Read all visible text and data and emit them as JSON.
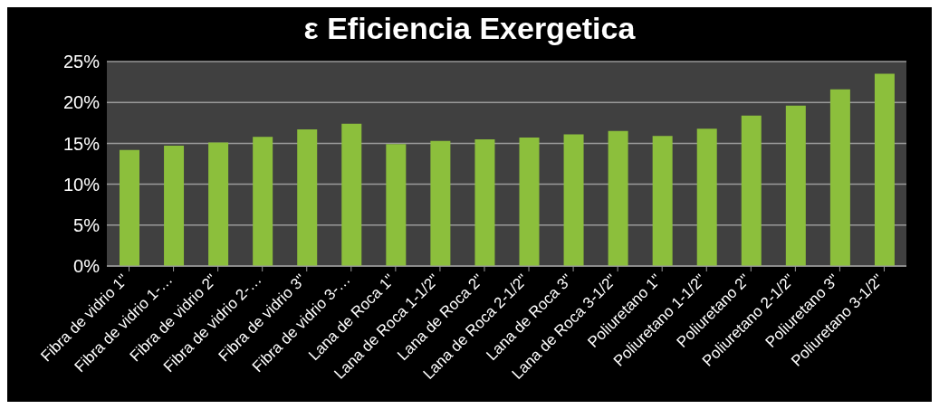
{
  "chart_data": {
    "type": "bar",
    "title": "ε Eficiencia Exergetica",
    "categories": [
      "Fibra de vidrio 1\"",
      "Fibra de vidrio 1-…",
      "Fibra de vidrio 2\"",
      "Fibra de vidrio 2-…",
      "Fibra de vidrio 3\"",
      "Fibra de vidrio 3-…",
      "Lana de Roca 1\"",
      "Lana de Roca 1-1/2\"",
      "Lana de Roca 2\"",
      "Lana de Roca 2-1/2\"",
      "Lana de Roca 3\"",
      "Lana de Roca 3-1/2\"",
      "Poliuretano 1\"",
      "Poliuretano 1-1/2\"",
      "Poliuretano 2\"",
      "Poliuretano 2-1/2\"",
      "Poliuretano 3\"",
      "Poliuretano 3-1/2\""
    ],
    "values": [
      14.2,
      14.7,
      15.1,
      15.8,
      16.7,
      17.4,
      14.9,
      15.3,
      15.5,
      15.7,
      16.1,
      16.5,
      15.9,
      16.8,
      18.4,
      19.6,
      21.6,
      23.5
    ],
    "color": "#8cbf3c",
    "ylim": [
      0,
      25
    ],
    "yticks": [
      {
        "value": 0,
        "label": "0%"
      },
      {
        "value": 5,
        "label": "5%"
      },
      {
        "value": 10,
        "label": "10%"
      },
      {
        "value": 15,
        "label": "15%"
      },
      {
        "value": 20,
        "label": "20%"
      },
      {
        "value": 25,
        "label": "25%"
      }
    ],
    "grid": "y"
  }
}
